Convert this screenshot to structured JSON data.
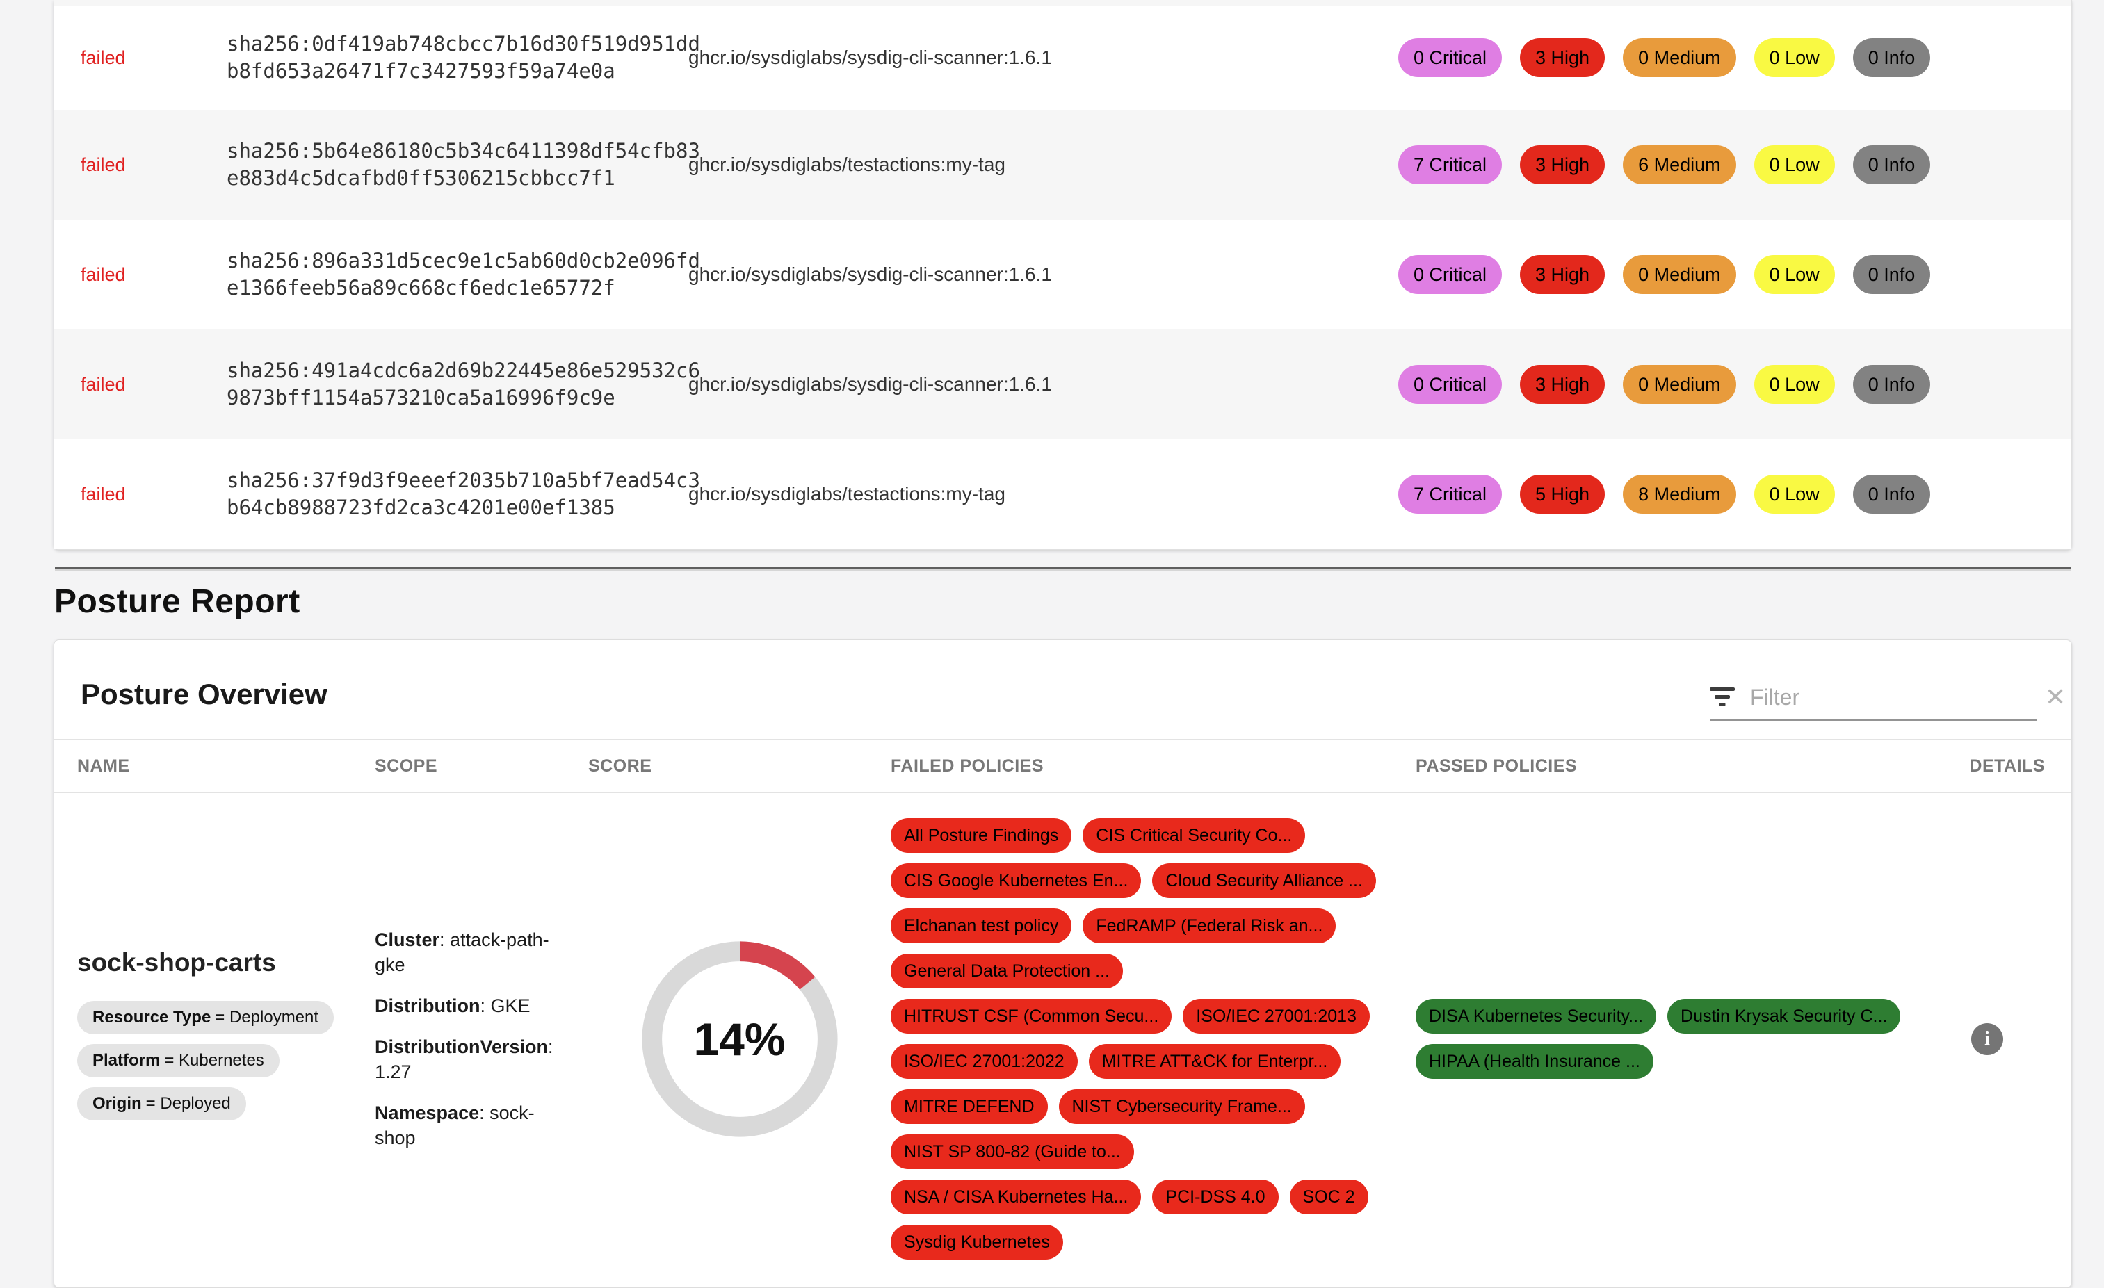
{
  "colors": {
    "critical": "#df7ee3",
    "high": "#e3281c",
    "medium": "#e89b3c",
    "low": "#f9f943",
    "info": "#828282",
    "failed_status_text": "#e02020",
    "failed_policy_chip": "#e8291c",
    "passed_policy_chip": "#2e7d32",
    "score_arc": "#d5444e",
    "score_track": "#d9d9d9"
  },
  "scan_table": {
    "rows": [
      {
        "status": "failed",
        "digest": "sha256:0df419ab748cbcc7b16d30f519d951dd\nb8fd653a26471f7c3427593f59a74e0a",
        "image": "ghcr.io/sysdiglabs/sysdig-cli-scanner:1.6.1",
        "badges": [
          {
            "label": "0 Critical",
            "severity": "critical"
          },
          {
            "label": "3 High",
            "severity": "high"
          },
          {
            "label": "0 Medium",
            "severity": "medium"
          },
          {
            "label": "0 Low",
            "severity": "low"
          },
          {
            "label": "0 Info",
            "severity": "info"
          }
        ]
      },
      {
        "status": "failed",
        "digest": "sha256:5b64e86180c5b34c6411398df54cfb83\ne883d4c5dcafbd0ff5306215cbbcc7f1",
        "image": "ghcr.io/sysdiglabs/testactions:my-tag",
        "badges": [
          {
            "label": "7 Critical",
            "severity": "critical"
          },
          {
            "label": "3 High",
            "severity": "high"
          },
          {
            "label": "6 Medium",
            "severity": "medium"
          },
          {
            "label": "0 Low",
            "severity": "low"
          },
          {
            "label": "0 Info",
            "severity": "info"
          }
        ]
      },
      {
        "status": "failed",
        "digest": "sha256:896a331d5cec9e1c5ab60d0cb2e096fd\ne1366feeb56a89c668cf6edc1e65772f",
        "image": "ghcr.io/sysdiglabs/sysdig-cli-scanner:1.6.1",
        "badges": [
          {
            "label": "0 Critical",
            "severity": "critical"
          },
          {
            "label": "3 High",
            "severity": "high"
          },
          {
            "label": "0 Medium",
            "severity": "medium"
          },
          {
            "label": "0 Low",
            "severity": "low"
          },
          {
            "label": "0 Info",
            "severity": "info"
          }
        ]
      },
      {
        "status": "failed",
        "digest": "sha256:491a4cdc6a2d69b22445e86e529532c6\n9873bff1154a573210ca5a16996f9c9e",
        "image": "ghcr.io/sysdiglabs/sysdig-cli-scanner:1.6.1",
        "badges": [
          {
            "label": "0 Critical",
            "severity": "critical"
          },
          {
            "label": "3 High",
            "severity": "high"
          },
          {
            "label": "0 Medium",
            "severity": "medium"
          },
          {
            "label": "0 Low",
            "severity": "low"
          },
          {
            "label": "0 Info",
            "severity": "info"
          }
        ]
      },
      {
        "status": "failed",
        "digest": "sha256:37f9d3f9eeef2035b710a5bf7ead54c3\nb64cb8988723fd2ca3c4201e00ef1385",
        "image": "ghcr.io/sysdiglabs/testactions:my-tag",
        "badges": [
          {
            "label": "7 Critical",
            "severity": "critical"
          },
          {
            "label": "5 High",
            "severity": "high"
          },
          {
            "label": "8 Medium",
            "severity": "medium"
          },
          {
            "label": "0 Low",
            "severity": "low"
          },
          {
            "label": "0 Info",
            "severity": "info"
          }
        ]
      }
    ]
  },
  "posture": {
    "section_title": "Posture Report",
    "card_title": "Posture Overview",
    "filter": {
      "placeholder": "Filter",
      "clear_label": "✕"
    },
    "columns": [
      "NAME",
      "SCOPE",
      "SCORE",
      "FAILED POLICIES",
      "PASSED POLICIES",
      "DETAILS"
    ],
    "row": {
      "name": "sock-shop-carts",
      "name_labels": [
        {
          "key": "Resource Type",
          "value": "Deployment"
        },
        {
          "key": "Platform",
          "value": "Kubernetes"
        },
        {
          "key": "Origin",
          "value": "Deployed"
        }
      ],
      "scope": [
        {
          "key": "Cluster",
          "value": "attack-path-gke"
        },
        {
          "key": "Distribution",
          "value": "GKE"
        },
        {
          "key": "DistributionVersion",
          "value": "1.27"
        },
        {
          "key": "Namespace",
          "value": "sock-shop"
        }
      ],
      "score": {
        "percent": 14,
        "label": "14%"
      },
      "failed_policies": [
        "All Posture Findings",
        "CIS Critical Security Co...",
        "CIS Google Kubernetes En...",
        "Cloud Security Alliance ...",
        "Elchanan test policy",
        "FedRAMP (Federal Risk an...",
        "General Data Protection ...",
        "HITRUST CSF (Common Secu...",
        "ISO/IEC 27001:2013",
        "ISO/IEC 27001:2022",
        "MITRE ATT&CK for Enterpr...",
        "MITRE DEFEND",
        "NIST Cybersecurity Frame...",
        "NIST SP 800-82 (Guide to...",
        "NSA / CISA Kubernetes Ha...",
        "PCI-DSS 4.0",
        "SOC 2",
        "Sysdig Kubernetes"
      ],
      "passed_policies": [
        "DISA Kubernetes Security...",
        "Dustin Krysak Security C...",
        "HIPAA (Health Insurance ..."
      ],
      "details_icon": "i"
    }
  }
}
